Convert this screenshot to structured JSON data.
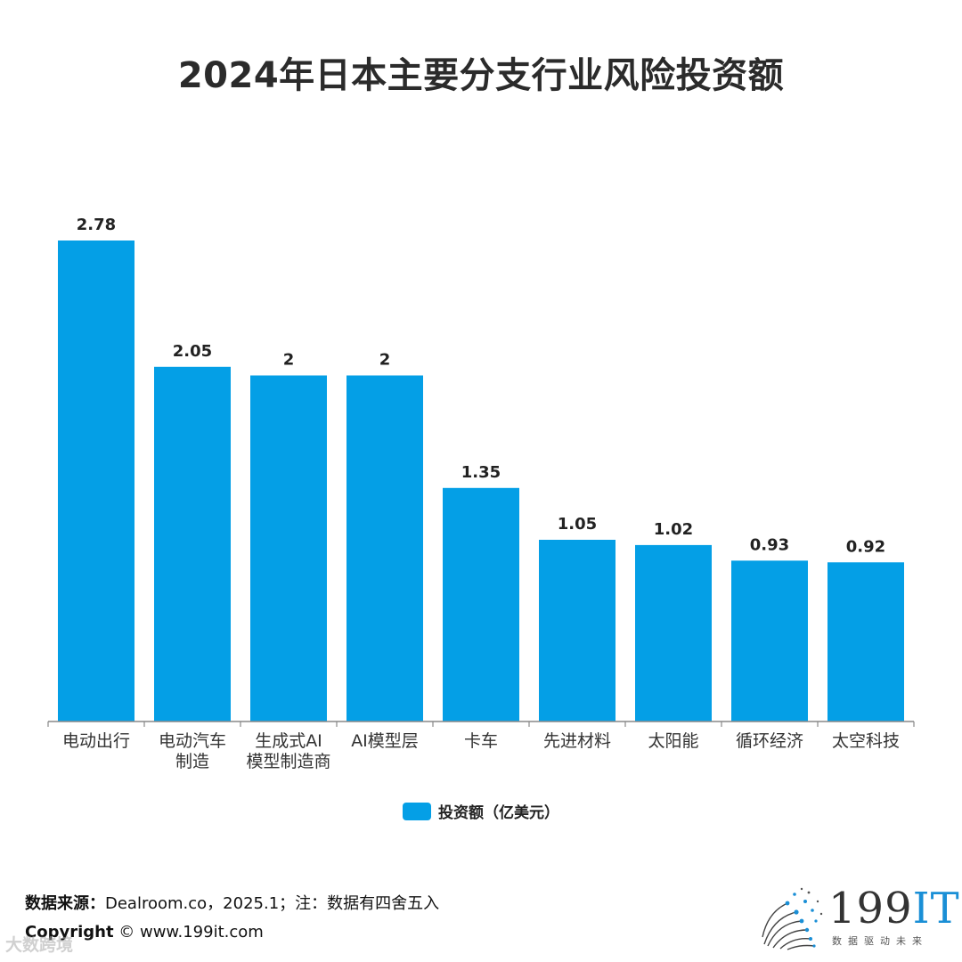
{
  "chart_data": {
    "type": "bar",
    "title": "2024年日本主要分支行业风险投资额",
    "categories": [
      [
        "电动出行"
      ],
      [
        "电动汽车",
        "制造"
      ],
      [
        "生成式AI",
        "模型制造商"
      ],
      [
        "AI模型层"
      ],
      [
        "卡车"
      ],
      [
        "先进材料"
      ],
      [
        "太阳能"
      ],
      [
        "循环经济"
      ],
      [
        "太空科技"
      ]
    ],
    "series": [
      {
        "name": "投资额（亿美元）",
        "values": [
          2.78,
          2.05,
          2,
          2,
          1.35,
          1.05,
          1.02,
          0.93,
          0.92
        ],
        "labels": [
          "2.78",
          "2.05",
          "2",
          "2",
          "1.35",
          "1.05",
          "1.02",
          "0.93",
          "0.92"
        ]
      }
    ],
    "ylim": [
      0,
      2.78
    ],
    "xlabel": "",
    "ylabel": "",
    "legend_position": "bottom-center",
    "grid": false
  },
  "colors": {
    "bar": "#049fe6",
    "axis": "#888888",
    "label": "#222222",
    "brand_accent": "#1a8fd6"
  },
  "footer": {
    "source_label": "数据来源：",
    "source_text": "Dealroom.co，2025.1；注：数据有四舍五入",
    "copyright_label": "Copyright",
    "copyright_text": " ©  www.199it.com",
    "watermark": "大数跨境"
  },
  "logo": {
    "number": "199",
    "letters": "IT",
    "tagline": "数据驱动未来"
  }
}
